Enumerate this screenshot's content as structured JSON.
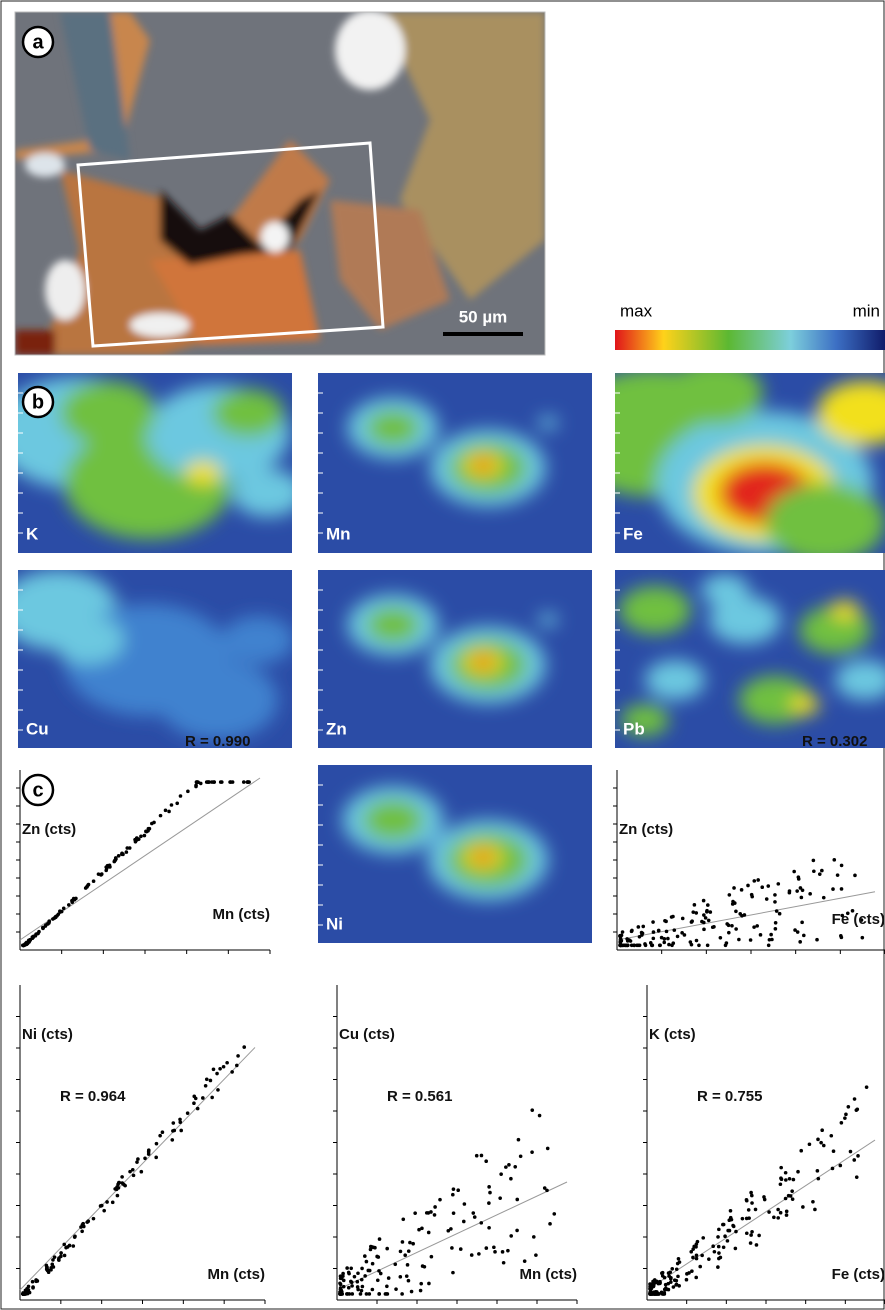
{
  "panel_a": {
    "label": "a",
    "scale_bar": "50 µm"
  },
  "colorbar": {
    "max": "max",
    "min": "min"
  },
  "panel_b": {
    "label": "b",
    "maps": [
      "K",
      "Mn",
      "Fe",
      "Cu",
      "Zn",
      "Pb",
      "Ni"
    ]
  },
  "panel_c": {
    "label": "c",
    "plots": [
      {
        "y_label": "Zn (cts)",
        "x_label": "Mn (cts)",
        "r": "R = 0.990"
      },
      {
        "y_label": "Zn (cts)",
        "x_label": "Fe (cts)",
        "r": "R = 0.302"
      },
      {
        "y_label": "Ni (cts)",
        "x_label": "Mn (cts)",
        "r": "R = 0.964"
      },
      {
        "y_label": "Cu (cts)",
        "x_label": "Mn (cts)",
        "r": "R = 0.561"
      },
      {
        "y_label": "K (cts)",
        "x_label": "Fe (cts)",
        "r": "R = 0.755"
      }
    ]
  }
}
